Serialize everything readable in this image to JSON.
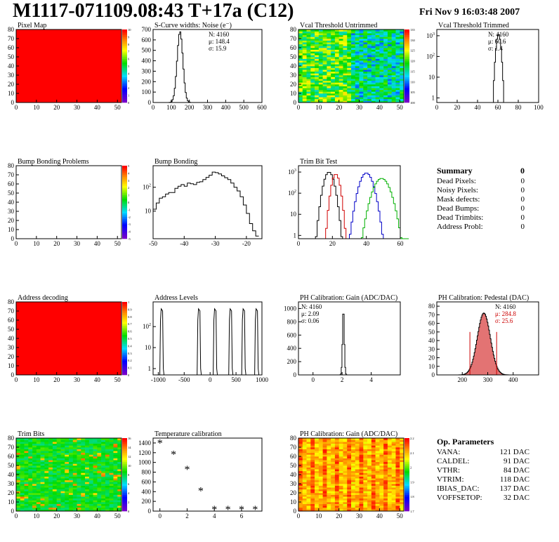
{
  "header": {
    "title": "M1117-071109.08:43 T+17a (C12)",
    "date": "Fri Nov  9 16:03:48 2007"
  },
  "colors": {
    "hist_line": "#000000",
    "trim_red": "#d00000",
    "trim_blue": "#0000c8",
    "trim_green": "#00b000",
    "pedestal_fill": "#cc0000",
    "pedestal_red_text": "#cc0000"
  },
  "chart_data": [
    {
      "id": "pixel_map",
      "type": "heatmap",
      "title": "Pixel Map",
      "xlim": [
        0,
        52
      ],
      "ylim": [
        0,
        80
      ],
      "xticks": [
        0,
        10,
        20,
        30,
        40,
        50
      ],
      "yticks": [
        0,
        10,
        20,
        30,
        40,
        50,
        60,
        70,
        80
      ],
      "fill": "uniform-max",
      "palette": {
        "ticks": [
          "0",
          "1",
          "2",
          "3",
          "4",
          "5",
          "6",
          "7",
          "8",
          "9",
          "10"
        ],
        "value_ticks": [
          0,
          1,
          2,
          3,
          4,
          5,
          6,
          7,
          8,
          9,
          10
        ]
      }
    },
    {
      "id": "scurve",
      "type": "line",
      "title": "S-Curve widths: Noise (e⁻)",
      "xlim": [
        0,
        600
      ],
      "ylim": [
        0,
        700
      ],
      "log": false,
      "xticks": [
        0,
        100,
        200,
        300,
        400,
        500,
        600
      ],
      "yticks": [
        0,
        100,
        200,
        300,
        400,
        500,
        600,
        700
      ],
      "stats": [
        "N: 4160",
        "μ: 148.4",
        "σ: 15.9"
      ],
      "series": [
        {
          "shape": "gaussian",
          "mean": 148.4,
          "sigma": 15.9,
          "peak": 680,
          "bin": 6
        }
      ]
    },
    {
      "id": "vcal_untrimmed",
      "type": "heatmap",
      "title": "Vcal Threshold Untrimmed",
      "xlim": [
        0,
        52
      ],
      "ylim": [
        0,
        80
      ],
      "xticks": [
        0,
        10,
        20,
        30,
        40,
        50
      ],
      "yticks": [
        0,
        10,
        20,
        30,
        40,
        50,
        60,
        70,
        80
      ],
      "fill": "noise-vcal",
      "palette": {
        "ticks": [
          "100",
          "105",
          "110",
          "115",
          "120",
          "125",
          "130",
          "135"
        ],
        "value_ticks": [
          100,
          105,
          110,
          115,
          120,
          125,
          130,
          135
        ]
      }
    },
    {
      "id": "vcal_trimmed",
      "type": "line",
      "title": "Vcal Threshold Trimmed",
      "xlim": [
        0,
        100
      ],
      "ylim": [
        0.6,
        2000
      ],
      "log": true,
      "xticks": [
        0,
        20,
        40,
        60,
        80,
        100
      ],
      "yticks": [
        1,
        10,
        100,
        1000
      ],
      "stats": [
        "N: 4160",
        "μ: 60.6",
        "σ:  1.4"
      ],
      "series": [
        {
          "shape": "gaussian",
          "mean": 60.6,
          "sigma": 1.4,
          "peak": 1200,
          "bin": 1
        }
      ]
    },
    {
      "id": "bump_problems",
      "type": "heatmap",
      "title": "Bump Bonding Problems",
      "xlim": [
        0,
        52
      ],
      "ylim": [
        0,
        80
      ],
      "xticks": [
        0,
        10,
        20,
        30,
        40,
        50
      ],
      "yticks": [
        0,
        10,
        20,
        30,
        40,
        50,
        60,
        70,
        80
      ],
      "fill": "empty",
      "palette": {
        "ticks": [
          "-5",
          "-4",
          "-3",
          "-2",
          "-1",
          "0",
          "1",
          "2",
          "3",
          "4",
          "5"
        ],
        "value_ticks": [
          -5,
          -4,
          -3,
          -2,
          -1,
          0,
          1,
          2,
          3,
          4,
          5
        ]
      }
    },
    {
      "id": "bump_bonding",
      "type": "line",
      "title": "Bump Bonding",
      "xlim": [
        -50,
        -15
      ],
      "ylim": [
        0.7,
        800
      ],
      "log": true,
      "xticks": [
        -50,
        -40,
        -30,
        -20
      ],
      "yticks": [
        10,
        100
      ],
      "series": [
        {
          "shape": "points",
          "x": [
            -50,
            -49,
            -48,
            -47,
            -46,
            -45,
            -44,
            -43,
            -42,
            -41,
            -40,
            -39,
            -38,
            -37,
            -36,
            -35,
            -34,
            -33,
            -32,
            -31,
            -30,
            -29,
            -28,
            -27,
            -26,
            -25,
            -24,
            -23,
            -22,
            -21,
            -20,
            -19,
            -18,
            -17
          ],
          "y": [
            12,
            22,
            35,
            40,
            52,
            60,
            60,
            90,
            110,
            130,
            110,
            150,
            140,
            130,
            160,
            170,
            210,
            260,
            320,
            430,
            410,
            360,
            300,
            250,
            210,
            150,
            100,
            70,
            40,
            18,
            8,
            3,
            1.5,
            0.9
          ]
        }
      ]
    },
    {
      "id": "trim_bit_test",
      "type": "line",
      "title": "Trim Bit Test",
      "xlim": [
        0,
        60
      ],
      "ylim": [
        0.7,
        2000
      ],
      "log": true,
      "xticks": [
        0,
        20,
        40,
        60
      ],
      "yticks": [
        1,
        10,
        100,
        1000
      ],
      "series": [
        {
          "color_key": "hist_line",
          "shape": "gaussian",
          "mean": 18,
          "sigma": 2.0,
          "peak": 1000,
          "bin": 1
        },
        {
          "color_key": "trim_red",
          "shape": "gaussian",
          "mean": 22,
          "sigma": 1.6,
          "peak": 800,
          "bin": 1
        },
        {
          "color_key": "trim_blue",
          "shape": "gaussian",
          "mean": 40,
          "sigma": 2.6,
          "peak": 900,
          "bin": 1
        },
        {
          "color_key": "trim_green",
          "shape": "gaussian",
          "mean": 49,
          "sigma": 3.2,
          "peak": 500,
          "bin": 1
        }
      ]
    },
    {
      "id": "address_decoding",
      "type": "heatmap",
      "title": "Address decoding",
      "xlim": [
        0,
        52
      ],
      "ylim": [
        0,
        80
      ],
      "xticks": [
        0,
        10,
        20,
        30,
        40,
        50
      ],
      "yticks": [
        0,
        10,
        20,
        30,
        40,
        50,
        60,
        70,
        80
      ],
      "fill": "uniform-max",
      "palette": {
        "ticks": [
          "0",
          "0.1",
          "0.2",
          "0.3",
          "0.4",
          "0.5",
          "0.6",
          "0.7",
          "0.8",
          "0.9",
          "1"
        ],
        "value_ticks": [
          0,
          0.1,
          0.2,
          0.3,
          0.4,
          0.5,
          0.6,
          0.7,
          0.8,
          0.9,
          1
        ]
      }
    },
    {
      "id": "address_levels",
      "type": "line",
      "title": "Address Levels",
      "xlim": [
        -1100,
        1000
      ],
      "ylim": [
        0.5,
        1500
      ],
      "log": true,
      "xticks": [
        -1000,
        -500,
        0,
        500,
        1000
      ],
      "yticks": [
        1,
        10,
        100
      ],
      "series": [
        {
          "shape": "spikes",
          "x": [
            -930,
            -210,
            100,
            400,
            650,
            900
          ],
          "peak": 700
        }
      ]
    },
    {
      "id": "ph_gain",
      "type": "line",
      "title": "PH Calibration: Gain (ADC/DAC)",
      "xlim": [
        -1,
        6
      ],
      "ylim": [
        0,
        1100
      ],
      "log": false,
      "xticks": [
        0,
        2,
        4
      ],
      "yticks": [
        0,
        200,
        400,
        600,
        800,
        1000
      ],
      "stats": [
        "N: 4160",
        "μ: 2.09",
        "σ: 0.06"
      ],
      "series": [
        {
          "shape": "gaussian",
          "mean": 2.09,
          "sigma": 0.06,
          "peak": 1000,
          "bin": 0.05
        }
      ]
    },
    {
      "id": "ph_pedestal",
      "type": "line",
      "title": "PH Calibration: Pedestal (DAC)",
      "xlim": [
        100,
        500
      ],
      "ylim": [
        0,
        85
      ],
      "log": false,
      "xticks": [
        200,
        300,
        400
      ],
      "yticks": [
        0,
        10,
        20,
        30,
        40,
        50,
        60,
        70,
        80
      ],
      "stats": [
        "N: 4160",
        "μ: 284.8",
        "σ: 25.6"
      ],
      "series": [
        {
          "shape": "gaussian",
          "mean": 284.8,
          "sigma": 25.6,
          "peak": 72,
          "bin": 3
        }
      ],
      "markers": [
        {
          "x": 230,
          "y": 50
        },
        {
          "x": 335,
          "y": 50
        }
      ]
    },
    {
      "id": "trim_bits",
      "type": "heatmap",
      "title": "Trim Bits",
      "xlim": [
        0,
        52
      ],
      "ylim": [
        0,
        80
      ],
      "xticks": [
        0,
        10,
        20,
        30,
        40,
        50
      ],
      "yticks": [
        0,
        10,
        20,
        30,
        40,
        50,
        60,
        70,
        80
      ],
      "fill": "noise-trim",
      "palette": {
        "ticks": [
          "0",
          "2",
          "4",
          "6",
          "8",
          "10",
          "12",
          "14",
          "16"
        ],
        "value_ticks": [
          0,
          2,
          4,
          6,
          8,
          10,
          12,
          14,
          16
        ]
      }
    },
    {
      "id": "temperature",
      "type": "scatter",
      "title": "Temperature calibration",
      "xlim": [
        -0.5,
        7.5
      ],
      "ylim": [
        0,
        1500
      ],
      "log": false,
      "xticks": [
        0,
        2,
        4,
        6
      ],
      "yticks": [
        0,
        200,
        400,
        600,
        800,
        1000,
        1200,
        1400
      ],
      "series": [
        {
          "shape": "points",
          "x": [
            0,
            1,
            2,
            3,
            4,
            5,
            6,
            7
          ],
          "y": [
            1420,
            1190,
            880,
            440,
            60,
            60,
            60,
            60
          ]
        }
      ]
    },
    {
      "id": "ph_gain_map",
      "type": "heatmap",
      "title": "PH Calibration: Gain (ADC/DAC)",
      "xlim": [
        0,
        52
      ],
      "ylim": [
        0,
        80
      ],
      "xticks": [
        0,
        10,
        20,
        30,
        40,
        50
      ],
      "yticks": [
        0,
        10,
        20,
        30,
        40,
        50,
        60,
        70,
        80
      ],
      "fill": "noise-gain",
      "palette": {
        "ticks": [
          "1.7",
          "1.8",
          "1.9",
          "2",
          "2.1",
          "2.2"
        ],
        "value_ticks": [
          1.7,
          1.8,
          1.9,
          2,
          2.1,
          2.2
        ]
      }
    }
  ],
  "summary": {
    "title": "Summary",
    "total": "0",
    "rows": [
      {
        "label": "Dead Pixels:",
        "value": "0"
      },
      {
        "label": "Noisy Pixels:",
        "value": "0"
      },
      {
        "label": "Mask defects:",
        "value": "0"
      },
      {
        "label": "Dead Bumps:",
        "value": "0"
      },
      {
        "label": "Dead Trimbits:",
        "value": "0"
      },
      {
        "label": "Address Probl:",
        "value": "0"
      }
    ]
  },
  "op_params": {
    "title": "Op. Parameters",
    "rows": [
      {
        "label": "VANA:",
        "value": "121 DAC"
      },
      {
        "label": "CALDEL:",
        "value": "91 DAC"
      },
      {
        "label": "VTHR:",
        "value": "84 DAC"
      },
      {
        "label": "VTRIM:",
        "value": "118 DAC"
      },
      {
        "label": "IBIAS_DAC:",
        "value": "137 DAC"
      },
      {
        "label": "VOFFSETOP:",
        "value": "32 DAC"
      }
    ]
  }
}
